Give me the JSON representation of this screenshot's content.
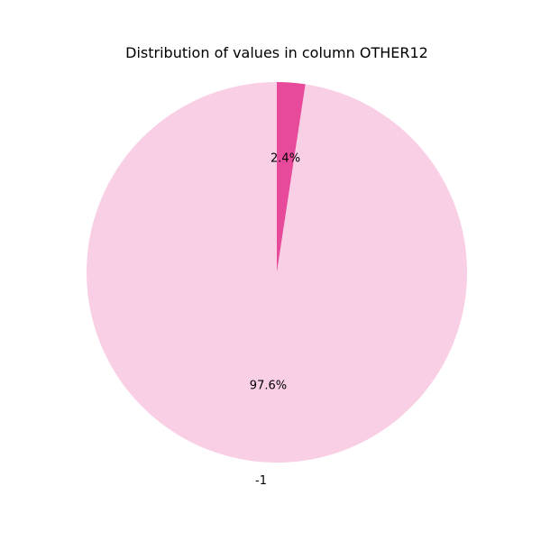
{
  "chart_data": {
    "type": "pie",
    "title": "Distribution of values in column OTHER12",
    "slices": [
      {
        "label": "-1",
        "value": 97.6,
        "percent_label": "97.6%",
        "color": "#f9cfe6"
      },
      {
        "label": "",
        "value": 2.4,
        "percent_label": "2.4%",
        "color": "#e84a9b"
      }
    ],
    "start_angle_deg": 90,
    "direction": "counterclockwise"
  }
}
